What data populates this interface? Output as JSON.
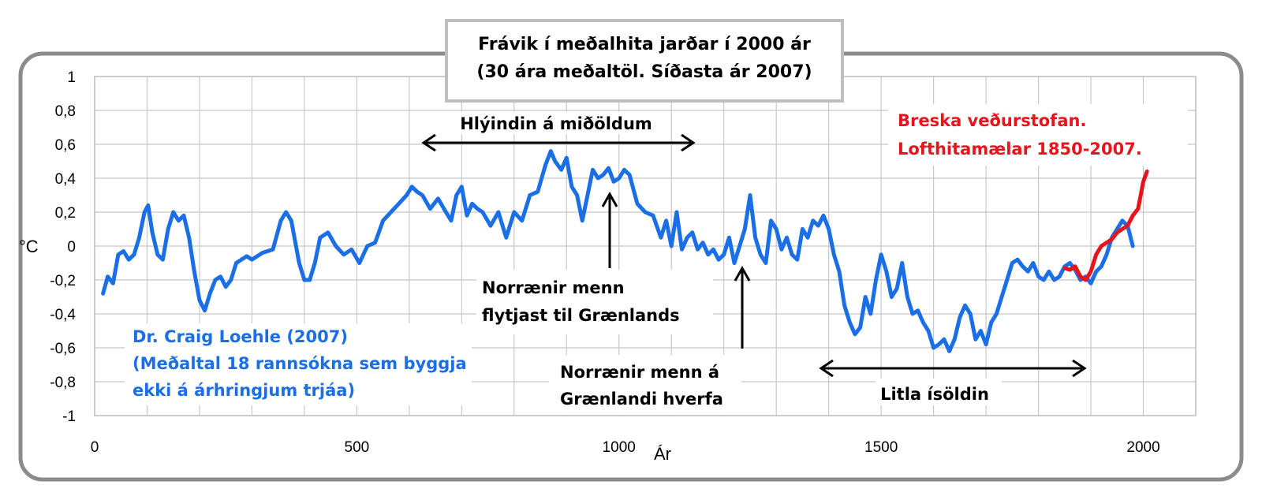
{
  "chart_data": {
    "type": "line",
    "title": "Frávik í meðalhita jarðar í 2000 ár",
    "subtitle": "(30 ára meðaltöl. Síðasta ár 2007)",
    "xlabel": "Ár",
    "ylabel": "°C",
    "xlim": [
      0,
      2100
    ],
    "ylim": [
      -1,
      1
    ],
    "x_ticks": [
      "0",
      "500",
      "1000",
      "1500",
      "2000"
    ],
    "y_ticks": [
      "1",
      "0,8",
      "0,6",
      "0,4",
      "0,2",
      "0",
      "-0,2",
      "-0,4",
      "-0,6",
      "-0,8",
      "-1"
    ],
    "grid": true,
    "colors": {
      "series1": "#1a6ee6",
      "series2": "#e8141c"
    },
    "series": [
      {
        "name": "Dr. Craig Loehle (2007)",
        "x": [
          16,
          25,
          35,
          45,
          55,
          65,
          75,
          85,
          95,
          102,
          110,
          120,
          130,
          140,
          150,
          160,
          170,
          180,
          190,
          200,
          210,
          220,
          230,
          240,
          250,
          260,
          270,
          280,
          290,
          300,
          320,
          340,
          355,
          365,
          375,
          390,
          400,
          410,
          420,
          430,
          445,
          460,
          475,
          490,
          505,
          520,
          535,
          550,
          565,
          580,
          595,
          605,
          615,
          625,
          640,
          655,
          670,
          680,
          690,
          700,
          710,
          720,
          730,
          740,
          755,
          770,
          785,
          800,
          815,
          830,
          845,
          860,
          870,
          878,
          890,
          900,
          910,
          920,
          930,
          940,
          950,
          960,
          970,
          980,
          990,
          1000,
          1010,
          1020,
          1035,
          1050,
          1065,
          1080,
          1090,
          1100,
          1110,
          1120,
          1130,
          1140,
          1150,
          1160,
          1170,
          1180,
          1190,
          1200,
          1210,
          1220,
          1230,
          1240,
          1250,
          1260,
          1270,
          1280,
          1290,
          1300,
          1310,
          1320,
          1330,
          1340,
          1350,
          1360,
          1370,
          1380,
          1390,
          1400,
          1410,
          1420,
          1430,
          1440,
          1450,
          1460,
          1470,
          1480,
          1490,
          1500,
          1510,
          1520,
          1530,
          1540,
          1550,
          1560,
          1570,
          1580,
          1590,
          1600,
          1610,
          1620,
          1630,
          1640,
          1650,
          1660,
          1670,
          1680,
          1690,
          1700,
          1710,
          1720,
          1730,
          1740,
          1750,
          1760,
          1770,
          1780,
          1790,
          1800,
          1810,
          1820,
          1830,
          1840,
          1850,
          1860,
          1870,
          1880,
          1890,
          1900,
          1910,
          1920,
          1930,
          1940,
          1950,
          1960,
          1970,
          1980
        ],
        "y": [
          -0.28,
          -0.18,
          -0.22,
          -0.05,
          -0.03,
          -0.08,
          -0.05,
          0.05,
          0.2,
          0.24,
          0.08,
          -0.05,
          -0.08,
          0.1,
          0.2,
          0.15,
          0.18,
          0.05,
          -0.15,
          -0.32,
          -0.38,
          -0.28,
          -0.2,
          -0.18,
          -0.24,
          -0.2,
          -0.1,
          -0.08,
          -0.06,
          -0.08,
          -0.04,
          -0.02,
          0.15,
          0.2,
          0.15,
          -0.1,
          -0.2,
          -0.2,
          -0.1,
          0.05,
          0.08,
          0.0,
          -0.05,
          -0.02,
          -0.1,
          0.0,
          0.02,
          0.15,
          0.2,
          0.25,
          0.3,
          0.35,
          0.32,
          0.3,
          0.22,
          0.28,
          0.2,
          0.15,
          0.3,
          0.35,
          0.18,
          0.25,
          0.22,
          0.2,
          0.12,
          0.2,
          0.05,
          0.2,
          0.15,
          0.3,
          0.32,
          0.48,
          0.56,
          0.5,
          0.45,
          0.52,
          0.35,
          0.3,
          0.15,
          0.3,
          0.45,
          0.4,
          0.42,
          0.46,
          0.38,
          0.4,
          0.45,
          0.42,
          0.25,
          0.2,
          0.18,
          0.05,
          0.15,
          0.0,
          0.2,
          -0.02,
          0.05,
          0.08,
          -0.02,
          0.02,
          -0.05,
          -0.02,
          -0.08,
          -0.05,
          0.05,
          -0.1,
          0.0,
          0.1,
          0.3,
          0.05,
          -0.05,
          -0.1,
          0.15,
          0.1,
          -0.02,
          0.05,
          -0.05,
          -0.08,
          0.1,
          0.05,
          0.15,
          0.12,
          0.18,
          0.1,
          -0.05,
          -0.15,
          -0.35,
          -0.45,
          -0.52,
          -0.48,
          -0.3,
          -0.4,
          -0.2,
          -0.05,
          -0.15,
          -0.3,
          -0.25,
          -0.1,
          -0.3,
          -0.4,
          -0.38,
          -0.45,
          -0.5,
          -0.6,
          -0.58,
          -0.55,
          -0.62,
          -0.55,
          -0.42,
          -0.35,
          -0.4,
          -0.55,
          -0.5,
          -0.58,
          -0.45,
          -0.4,
          -0.3,
          -0.2,
          -0.1,
          -0.08,
          -0.12,
          -0.15,
          -0.1,
          -0.18,
          -0.2,
          -0.15,
          -0.2,
          -0.18,
          -0.12,
          -0.1,
          -0.14,
          -0.2,
          -0.18,
          -0.22,
          -0.15,
          -0.12,
          -0.05,
          0.05,
          0.1,
          0.15,
          0.12,
          0.0
        ]
      },
      {
        "name": "Breska veðurstofan. Lofthitamælar 1850-2007.",
        "x": [
          1850,
          1860,
          1870,
          1880,
          1890,
          1900,
          1910,
          1920,
          1930,
          1940,
          1950,
          1960,
          1970,
          1980,
          1990,
          2000,
          2007
        ],
        "y": [
          -0.13,
          -0.14,
          -0.12,
          -0.18,
          -0.2,
          -0.15,
          -0.05,
          0.0,
          0.02,
          0.04,
          0.08,
          0.1,
          0.12,
          0.18,
          0.22,
          0.38,
          0.44
        ]
      }
    ],
    "annotations": {
      "medieval_warm": "Hlýindin á miðöldum",
      "norse_arrive_line1": "Norrænir menn",
      "norse_arrive_line2": "flytjast til Grænlands",
      "norse_vanish_line1": "Norrænir menn á",
      "norse_vanish_line2": "Grænlandi hverfa",
      "little_ice_age": "Litla ísöldin",
      "loehle_line1": "Dr. Craig Loehle (2007)",
      "loehle_line2": "(Meðaltal 18 rannsókna sem byggja",
      "loehle_line3": "ekki á árhringjum trjáa)",
      "met_line1": "Breska veðurstofan.",
      "met_line2": "Lofthitamælar 1850-2007."
    }
  }
}
